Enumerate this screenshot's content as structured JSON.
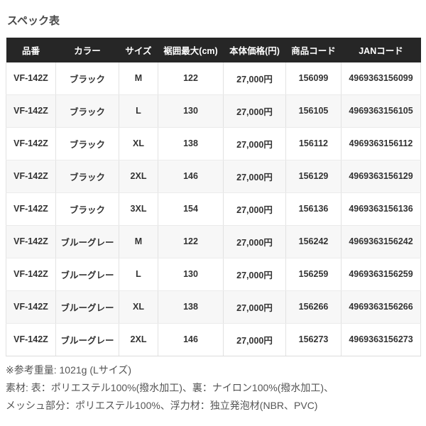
{
  "section": {
    "title": "スペック表"
  },
  "table": {
    "columns": [
      {
        "key": "hinban",
        "label": "品番"
      },
      {
        "key": "color",
        "label": "カラー"
      },
      {
        "key": "size",
        "label": "サイズ"
      },
      {
        "key": "hem",
        "label": "裾囲最大(cm)"
      },
      {
        "key": "price",
        "label": "本体価格(円)"
      },
      {
        "key": "code",
        "label": "商品コード"
      },
      {
        "key": "jan",
        "label": "JANコード"
      }
    ],
    "rows": [
      [
        "VF-142Z",
        "ブラック",
        "M",
        "122",
        "27,000円",
        "156099",
        "4969363156099"
      ],
      [
        "VF-142Z",
        "ブラック",
        "L",
        "130",
        "27,000円",
        "156105",
        "4969363156105"
      ],
      [
        "VF-142Z",
        "ブラック",
        "XL",
        "138",
        "27,000円",
        "156112",
        "4969363156112"
      ],
      [
        "VF-142Z",
        "ブラック",
        "2XL",
        "146",
        "27,000円",
        "156129",
        "4969363156129"
      ],
      [
        "VF-142Z",
        "ブラック",
        "3XL",
        "154",
        "27,000円",
        "156136",
        "4969363156136"
      ],
      [
        "VF-142Z",
        "ブルーグレー",
        "M",
        "122",
        "27,000円",
        "156242",
        "4969363156242"
      ],
      [
        "VF-142Z",
        "ブルーグレー",
        "L",
        "130",
        "27,000円",
        "156259",
        "4969363156259"
      ],
      [
        "VF-142Z",
        "ブルーグレー",
        "XL",
        "138",
        "27,000円",
        "156266",
        "4969363156266"
      ],
      [
        "VF-142Z",
        "ブルーグレー",
        "2XL",
        "146",
        "27,000円",
        "156273",
        "4969363156273"
      ]
    ]
  },
  "notes": [
    "※参考重量: 1021g (Lサイズ)",
    "素材: 表：ポリエステル100%(撥水加工)、裏：ナイロン100%(撥水加工)、",
    "メッシュ部分：ポリエステル100%、浮力材：独立発泡材(NBR、PVC)"
  ],
  "colors": {
    "header_bg": "#262626",
    "header_text": "#ffffff",
    "row_bg": "#ffffff",
    "row_alt_bg": "#f7f7f7",
    "cell_text": "#333333",
    "border": "#e2e2e2",
    "title_text": "#4a4a4a",
    "note_text": "#555555"
  }
}
